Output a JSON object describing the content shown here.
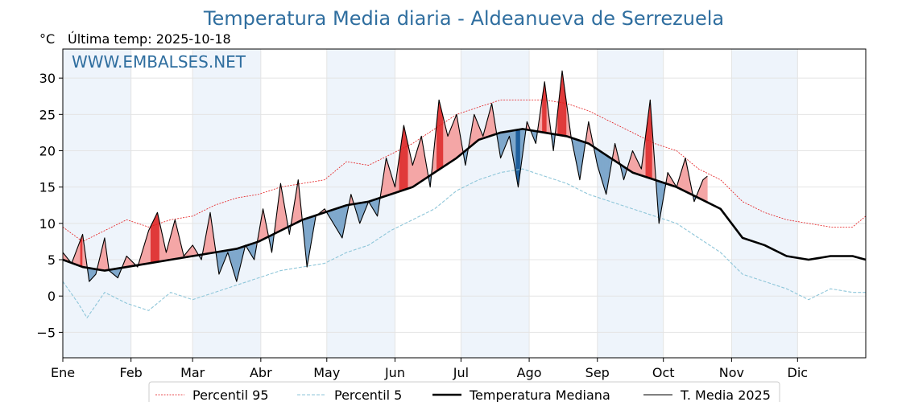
{
  "chart_data": {
    "type": "line",
    "title": "Temperatura Media diaria - Aldeanueva de Serrezuela",
    "unit_label": "°C",
    "last_temp_label": "Última temp: 2025-10-18",
    "watermark": "WWW.EMBALSES.NET",
    "ylim": [
      -8.5,
      34
    ],
    "xlim": [
      1,
      366
    ],
    "y_ticks": [
      -5,
      0,
      5,
      10,
      15,
      20,
      25,
      30
    ],
    "x_ticks": [
      {
        "label": "Ene",
        "day": 1
      },
      {
        "label": "Feb",
        "day": 32
      },
      {
        "label": "Mar",
        "day": 60
      },
      {
        "label": "Abr",
        "day": 91
      },
      {
        "label": "May",
        "day": 121
      },
      {
        "label": "Jun",
        "day": 152
      },
      {
        "label": "Jul",
        "day": 182
      },
      {
        "label": "Ago",
        "day": 213
      },
      {
        "label": "Sep",
        "day": 244
      },
      {
        "label": "Oct",
        "day": 274
      },
      {
        "label": "Nov",
        "day": 305
      },
      {
        "label": "Dic",
        "day": 335
      }
    ],
    "shaded_month_bands": [
      [
        1,
        32
      ],
      [
        60,
        91
      ],
      [
        121,
        152
      ],
      [
        182,
        213
      ],
      [
        244,
        274
      ],
      [
        305,
        335
      ]
    ],
    "grid": true,
    "legend_position": "bottom",
    "colors": {
      "p95": "#e41a1c",
      "p5": "#8ec6d9",
      "median": "#000000",
      "current": "#000000",
      "above_fill": "#f4a6a6",
      "above_fill_strong": "#e03a3a",
      "below_fill": "#7fa8cc",
      "below_fill_strong": "#1f5f9c",
      "band": "#eef4fb",
      "title": "#2f6e9f"
    },
    "series": [
      {
        "name": "Percentil 95",
        "key": "p95",
        "points": [
          [
            1,
            9.5
          ],
          [
            10,
            7.5
          ],
          [
            20,
            9
          ],
          [
            30,
            10.5
          ],
          [
            40,
            9.5
          ],
          [
            50,
            10.5
          ],
          [
            60,
            11
          ],
          [
            70,
            12.5
          ],
          [
            80,
            13.5
          ],
          [
            90,
            14
          ],
          [
            100,
            15
          ],
          [
            110,
            15.5
          ],
          [
            120,
            16
          ],
          [
            130,
            18.5
          ],
          [
            140,
            18
          ],
          [
            150,
            19.5
          ],
          [
            160,
            21
          ],
          [
            170,
            23
          ],
          [
            180,
            25
          ],
          [
            190,
            26
          ],
          [
            200,
            27
          ],
          [
            210,
            27
          ],
          [
            220,
            27
          ],
          [
            230,
            26.5
          ],
          [
            240,
            25.5
          ],
          [
            250,
            24
          ],
          [
            260,
            22.5
          ],
          [
            270,
            21
          ],
          [
            280,
            20
          ],
          [
            290,
            17.5
          ],
          [
            300,
            16
          ],
          [
            310,
            13
          ],
          [
            320,
            11.5
          ],
          [
            330,
            10.5
          ],
          [
            340,
            10
          ],
          [
            350,
            9.5
          ],
          [
            360,
            9.5
          ],
          [
            366,
            11
          ]
        ]
      },
      {
        "name": "Percentil 5",
        "key": "p5",
        "points": [
          [
            1,
            2
          ],
          [
            8,
            -1
          ],
          [
            12,
            -3
          ],
          [
            20,
            0.5
          ],
          [
            30,
            -1
          ],
          [
            40,
            -2
          ],
          [
            50,
            0.5
          ],
          [
            60,
            -0.5
          ],
          [
            70,
            0.5
          ],
          [
            80,
            1.5
          ],
          [
            90,
            2.5
          ],
          [
            100,
            3.5
          ],
          [
            110,
            4
          ],
          [
            120,
            4.5
          ],
          [
            130,
            6
          ],
          [
            140,
            7
          ],
          [
            150,
            9
          ],
          [
            160,
            10.5
          ],
          [
            170,
            12
          ],
          [
            180,
            14.5
          ],
          [
            190,
            16
          ],
          [
            200,
            17
          ],
          [
            210,
            17.5
          ],
          [
            220,
            16.5
          ],
          [
            230,
            15.5
          ],
          [
            240,
            14
          ],
          [
            250,
            13
          ],
          [
            260,
            12
          ],
          [
            270,
            11
          ],
          [
            280,
            10
          ],
          [
            290,
            8
          ],
          [
            300,
            6
          ],
          [
            310,
            3
          ],
          [
            320,
            2
          ],
          [
            330,
            1
          ],
          [
            340,
            -0.5
          ],
          [
            350,
            1
          ],
          [
            360,
            0.5
          ],
          [
            366,
            0.5
          ]
        ]
      },
      {
        "name": "Temperatura Mediana",
        "key": "median",
        "points": [
          [
            1,
            5
          ],
          [
            10,
            4
          ],
          [
            20,
            3.5
          ],
          [
            30,
            4
          ],
          [
            40,
            4.5
          ],
          [
            50,
            5
          ],
          [
            60,
            5.5
          ],
          [
            70,
            6
          ],
          [
            80,
            6.5
          ],
          [
            90,
            7.5
          ],
          [
            100,
            9
          ],
          [
            110,
            10.5
          ],
          [
            120,
            11.5
          ],
          [
            130,
            12.5
          ],
          [
            140,
            13
          ],
          [
            150,
            14
          ],
          [
            160,
            15
          ],
          [
            170,
            17
          ],
          [
            180,
            19
          ],
          [
            190,
            21.5
          ],
          [
            200,
            22.5
          ],
          [
            210,
            23
          ],
          [
            220,
            22.5
          ],
          [
            230,
            22
          ],
          [
            240,
            21
          ],
          [
            250,
            19
          ],
          [
            260,
            17
          ],
          [
            270,
            16
          ],
          [
            280,
            15
          ],
          [
            290,
            13.5
          ],
          [
            300,
            12
          ],
          [
            310,
            8
          ],
          [
            320,
            7
          ],
          [
            330,
            5.5
          ],
          [
            340,
            5
          ],
          [
            350,
            5.5
          ],
          [
            360,
            5.5
          ],
          [
            366,
            5
          ]
        ]
      },
      {
        "name": "T. Media 2025",
        "key": "current",
        "points": [
          [
            1,
            6
          ],
          [
            5,
            4.5
          ],
          [
            10,
            8.5
          ],
          [
            13,
            2
          ],
          [
            16,
            3
          ],
          [
            20,
            8
          ],
          [
            22,
            3.5
          ],
          [
            26,
            2.5
          ],
          [
            30,
            5.5
          ],
          [
            35,
            4
          ],
          [
            40,
            9
          ],
          [
            44,
            11.5
          ],
          [
            48,
            6
          ],
          [
            52,
            10.5
          ],
          [
            56,
            5.5
          ],
          [
            60,
            7
          ],
          [
            64,
            5
          ],
          [
            68,
            11.5
          ],
          [
            72,
            3
          ],
          [
            76,
            6
          ],
          [
            80,
            2
          ],
          [
            84,
            7
          ],
          [
            88,
            5
          ],
          [
            92,
            12
          ],
          [
            96,
            6
          ],
          [
            100,
            15.5
          ],
          [
            104,
            8.5
          ],
          [
            108,
            16
          ],
          [
            112,
            4
          ],
          [
            116,
            11
          ],
          [
            120,
            12
          ],
          [
            124,
            10
          ],
          [
            128,
            8
          ],
          [
            132,
            14
          ],
          [
            136,
            10
          ],
          [
            140,
            13
          ],
          [
            144,
            11
          ],
          [
            148,
            19
          ],
          [
            152,
            15
          ],
          [
            156,
            23.5
          ],
          [
            160,
            18
          ],
          [
            164,
            22
          ],
          [
            168,
            15
          ],
          [
            172,
            27
          ],
          [
            176,
            22
          ],
          [
            180,
            25
          ],
          [
            184,
            18
          ],
          [
            188,
            25
          ],
          [
            192,
            22
          ],
          [
            196,
            26.5
          ],
          [
            200,
            19
          ],
          [
            204,
            22
          ],
          [
            208,
            15
          ],
          [
            212,
            24
          ],
          [
            216,
            21
          ],
          [
            220,
            29.5
          ],
          [
            224,
            20
          ],
          [
            228,
            31
          ],
          [
            232,
            22
          ],
          [
            236,
            16
          ],
          [
            240,
            24
          ],
          [
            244,
            18
          ],
          [
            248,
            14
          ],
          [
            252,
            21
          ],
          [
            256,
            16
          ],
          [
            260,
            20
          ],
          [
            264,
            17.5
          ],
          [
            268,
            27
          ],
          [
            272,
            10
          ],
          [
            276,
            17
          ],
          [
            280,
            15
          ],
          [
            284,
            19
          ],
          [
            288,
            13
          ],
          [
            292,
            16
          ],
          [
            294,
            16.5
          ]
        ]
      }
    ]
  }
}
